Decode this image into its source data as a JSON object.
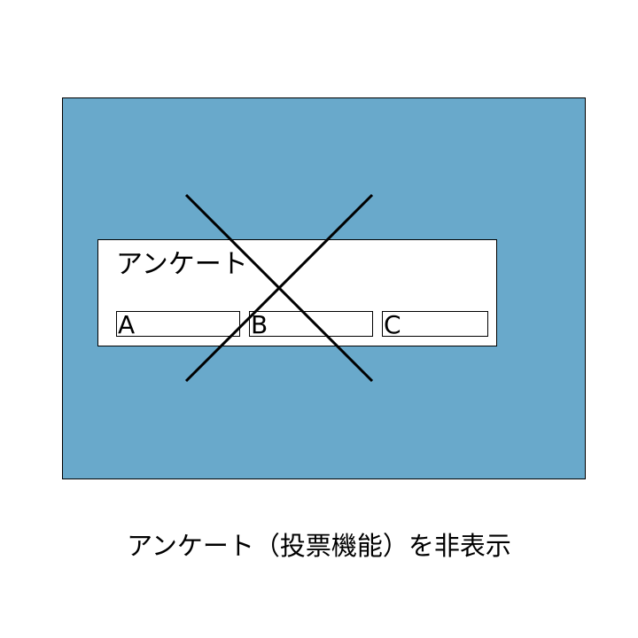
{
  "colors": {
    "screen_background": "#69a9cb",
    "cross": "#000000"
  },
  "survey": {
    "title": "アンケート",
    "options": [
      "A",
      "B",
      "C"
    ]
  },
  "caption": "アンケート（投票機能）を非表示"
}
